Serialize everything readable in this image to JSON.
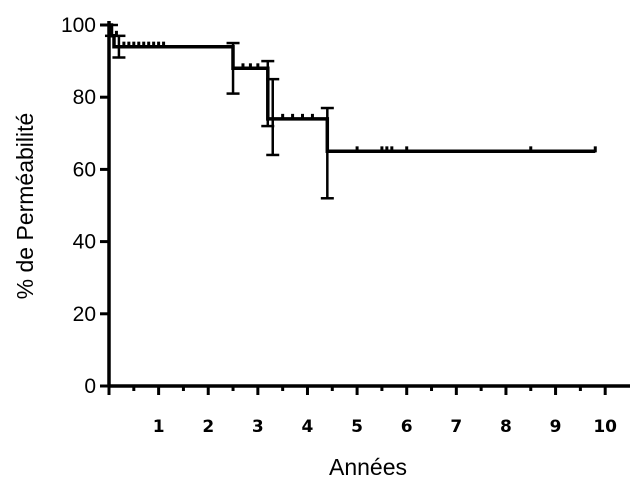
{
  "chart_data": {
    "type": "line",
    "title": "",
    "xlabel": "Années",
    "ylabel": "% de Perméabilité",
    "xlim": [
      0,
      10.5
    ],
    "ylim": [
      0,
      100
    ],
    "xticks": [
      1,
      2,
      3,
      4,
      5,
      6,
      7,
      8,
      9,
      10
    ],
    "yticks": [
      0,
      20,
      40,
      60,
      80,
      100
    ],
    "grid": false,
    "legend": "none",
    "color": "#000000",
    "series": [
      {
        "step": [
          {
            "x": 0,
            "y": 100
          },
          {
            "x": 0.05,
            "y": 100
          },
          {
            "x": 0.05,
            "y": 97
          },
          {
            "x": 0.1,
            "y": 97
          },
          {
            "x": 0.1,
            "y": 94
          },
          {
            "x": 2.5,
            "y": 94
          },
          {
            "x": 2.5,
            "y": 88
          },
          {
            "x": 3.2,
            "y": 88
          },
          {
            "x": 3.2,
            "y": 74
          },
          {
            "x": 4.4,
            "y": 74
          },
          {
            "x": 4.4,
            "y": 65
          },
          {
            "x": 9.8,
            "y": 65
          }
        ],
        "error_bars": [
          {
            "x": 0.05,
            "low": 97,
            "high": 100
          },
          {
            "x": 0.2,
            "low": 91,
            "high": 97
          },
          {
            "x": 2.5,
            "low": 81,
            "high": 95
          },
          {
            "x": 3.2,
            "low": 72,
            "high": 90
          },
          {
            "x": 3.3,
            "low": 64,
            "high": 85
          },
          {
            "x": 4.4,
            "low": 52,
            "high": 77
          }
        ],
        "censored": [
          {
            "x": 0.15,
            "y": 97
          },
          {
            "x": 0.3,
            "y": 94
          },
          {
            "x": 0.4,
            "y": 94
          },
          {
            "x": 0.5,
            "y": 94
          },
          {
            "x": 0.6,
            "y": 94
          },
          {
            "x": 0.7,
            "y": 94
          },
          {
            "x": 0.8,
            "y": 94
          },
          {
            "x": 0.9,
            "y": 94
          },
          {
            "x": 1.0,
            "y": 94
          },
          {
            "x": 1.1,
            "y": 94
          },
          {
            "x": 2.7,
            "y": 88
          },
          {
            "x": 2.85,
            "y": 88
          },
          {
            "x": 3.0,
            "y": 88
          },
          {
            "x": 3.5,
            "y": 74
          },
          {
            "x": 3.7,
            "y": 74
          },
          {
            "x": 3.9,
            "y": 74
          },
          {
            "x": 4.1,
            "y": 74
          },
          {
            "x": 5.0,
            "y": 65
          },
          {
            "x": 5.5,
            "y": 65
          },
          {
            "x": 5.6,
            "y": 65
          },
          {
            "x": 5.7,
            "y": 65
          },
          {
            "x": 6.0,
            "y": 65
          },
          {
            "x": 8.5,
            "y": 65
          },
          {
            "x": 9.8,
            "y": 65
          }
        ]
      }
    ]
  }
}
